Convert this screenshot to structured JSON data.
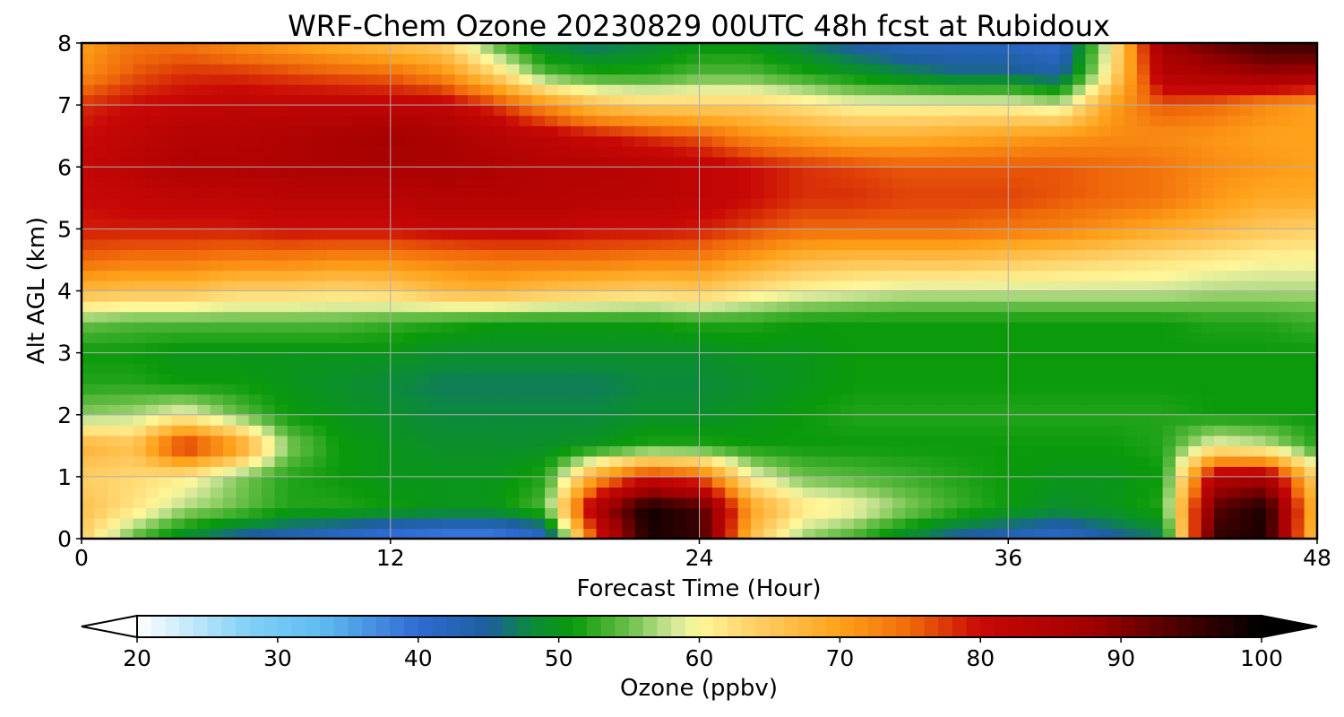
{
  "chart_data": {
    "type": "heatmap",
    "title": "WRF-Chem Ozone  20230829 00UTC 48h fcst at Rubidoux",
    "xlabel": "Forecast Time (Hour)",
    "ylabel": "Alt AGL (km)",
    "xlim": [
      0,
      48
    ],
    "ylim": [
      0,
      8
    ],
    "xticks": [
      "0",
      "12",
      "24",
      "36",
      "48"
    ],
    "yticks": [
      "0",
      "1",
      "2",
      "3",
      "4",
      "5",
      "6",
      "7",
      "8"
    ],
    "grid": true,
    "x_hours": [
      0,
      2,
      4,
      6,
      8,
      10,
      12,
      14,
      16,
      18,
      20,
      22,
      24,
      26,
      28,
      30,
      32,
      34,
      36,
      38,
      40,
      42,
      44,
      46,
      48
    ],
    "y_km": [
      0,
      0.5,
      1,
      1.5,
      2,
      2.5,
      3,
      3.5,
      4,
      4.5,
      5,
      5.5,
      6,
      6.5,
      7,
      7.5,
      8
    ],
    "ozone_ppbv": [
      [
        64,
        54,
        48,
        44,
        42,
        40,
        38,
        37,
        37,
        40,
        78,
        98,
        96,
        66,
        56,
        53,
        48,
        44,
        42,
        40,
        44,
        47,
        96,
        98,
        64
      ],
      [
        66,
        62,
        57,
        55,
        52,
        52,
        51,
        50,
        50,
        54,
        86,
        99,
        95,
        70,
        62,
        60,
        56,
        53,
        51,
        49,
        50,
        52,
        93,
        98,
        66
      ],
      [
        64,
        63,
        61,
        56,
        52,
        51,
        50,
        50,
        50,
        52,
        70,
        80,
        76,
        60,
        55,
        54,
        53,
        52,
        51,
        50,
        50,
        51,
        84,
        86,
        63
      ],
      [
        68,
        66,
        80,
        72,
        56,
        51,
        50,
        49,
        49,
        49,
        50,
        52,
        52,
        51,
        51,
        51,
        51,
        51,
        51,
        51,
        51,
        52,
        60,
        58,
        52
      ],
      [
        56,
        57,
        60,
        55,
        51,
        50,
        49,
        48,
        48,
        48,
        48,
        49,
        49,
        50,
        51,
        52,
        52,
        52,
        52,
        52,
        52,
        52,
        51,
        51,
        51
      ],
      [
        52,
        52,
        51,
        51,
        50,
        49,
        48,
        47,
        47,
        47,
        47,
        48,
        48,
        49,
        50,
        51,
        51,
        51,
        51,
        51,
        51,
        51,
        51,
        51,
        51
      ],
      [
        51,
        51,
        50,
        50,
        50,
        50,
        50,
        49,
        49,
        49,
        49,
        49,
        49,
        50,
        50,
        51,
        51,
        51,
        51,
        51,
        51,
        51,
        51,
        51,
        51
      ],
      [
        55,
        54,
        54,
        54,
        54,
        54,
        53,
        52,
        51,
        51,
        51,
        51,
        52,
        52,
        51,
        51,
        51,
        51,
        51,
        51,
        51,
        51,
        52,
        52,
        53
      ],
      [
        67,
        66,
        66,
        64,
        64,
        63,
        64,
        67,
        68,
        66,
        65,
        64,
        65,
        62,
        60,
        59,
        58,
        58,
        58,
        58,
        58,
        58,
        57,
        57,
        57
      ],
      [
        75,
        74,
        74,
        73,
        73,
        72,
        72,
        73,
        74,
        74,
        74,
        73,
        73,
        70,
        67,
        66,
        66,
        66,
        65,
        64,
        63,
        62,
        61,
        60,
        60
      ],
      [
        79,
        79,
        79,
        79,
        80,
        80,
        80,
        81,
        81,
        81,
        80,
        80,
        79,
        77,
        75,
        75,
        75,
        75,
        74,
        73,
        71,
        69,
        67,
        65,
        64
      ],
      [
        80,
        81,
        82,
        82,
        83,
        83,
        83,
        84,
        84,
        84,
        83,
        83,
        82,
        80,
        78,
        78,
        77,
        77,
        77,
        76,
        75,
        74,
        71,
        69,
        69
      ],
      [
        81,
        83,
        85,
        85,
        85,
        86,
        86,
        86,
        85,
        84,
        84,
        83,
        82,
        80,
        78,
        77,
        76,
        76,
        76,
        76,
        75,
        74,
        72,
        71,
        70
      ],
      [
        80,
        82,
        84,
        84,
        85,
        86,
        87,
        86,
        84,
        82,
        80,
        78,
        76,
        72,
        70,
        68,
        68,
        69,
        70,
        71,
        72,
        72,
        71,
        70,
        70
      ],
      [
        78,
        80,
        81,
        82,
        82,
        82,
        82,
        82,
        78,
        72,
        66,
        64,
        64,
        64,
        62,
        60,
        60,
        60,
        60,
        58,
        70,
        76,
        75,
        72,
        70
      ],
      [
        72,
        76,
        78,
        78,
        77,
        76,
        75,
        72,
        64,
        54,
        52,
        52,
        54,
        54,
        52,
        50,
        48,
        46,
        46,
        44,
        62,
        84,
        86,
        88,
        87
      ],
      [
        70,
        74,
        74,
        72,
        70,
        68,
        66,
        64,
        54,
        48,
        46,
        48,
        50,
        50,
        47,
        44,
        42,
        42,
        42,
        40,
        60,
        88,
        92,
        95,
        96
      ]
    ]
  },
  "colorbar": {
    "label": "Ozone  (ppbv)",
    "vmin": 20,
    "vmax": 100,
    "ticks": [
      "20",
      "30",
      "40",
      "50",
      "60",
      "70",
      "80",
      "90",
      "100"
    ],
    "extend": "both",
    "stops": [
      {
        "v": 20,
        "c": "#ffffff"
      },
      {
        "v": 28,
        "c": "#7fd0f5"
      },
      {
        "v": 33,
        "c": "#60bcf2"
      },
      {
        "v": 40,
        "c": "#2f6bd3"
      },
      {
        "v": 45,
        "c": "#1d5f9e"
      },
      {
        "v": 48,
        "c": "#0b8a3c"
      },
      {
        "v": 51,
        "c": "#0a9a0a"
      },
      {
        "v": 55,
        "c": "#6cc04a"
      },
      {
        "v": 58,
        "c": "#cde597"
      },
      {
        "v": 60,
        "c": "#fff79a"
      },
      {
        "v": 64,
        "c": "#ffcf66"
      },
      {
        "v": 70,
        "c": "#ffa21a"
      },
      {
        "v": 75,
        "c": "#f06a0a"
      },
      {
        "v": 80,
        "c": "#c80806"
      },
      {
        "v": 88,
        "c": "#a00000"
      },
      {
        "v": 93,
        "c": "#5a0000"
      },
      {
        "v": 100,
        "c": "#000000"
      }
    ]
  }
}
